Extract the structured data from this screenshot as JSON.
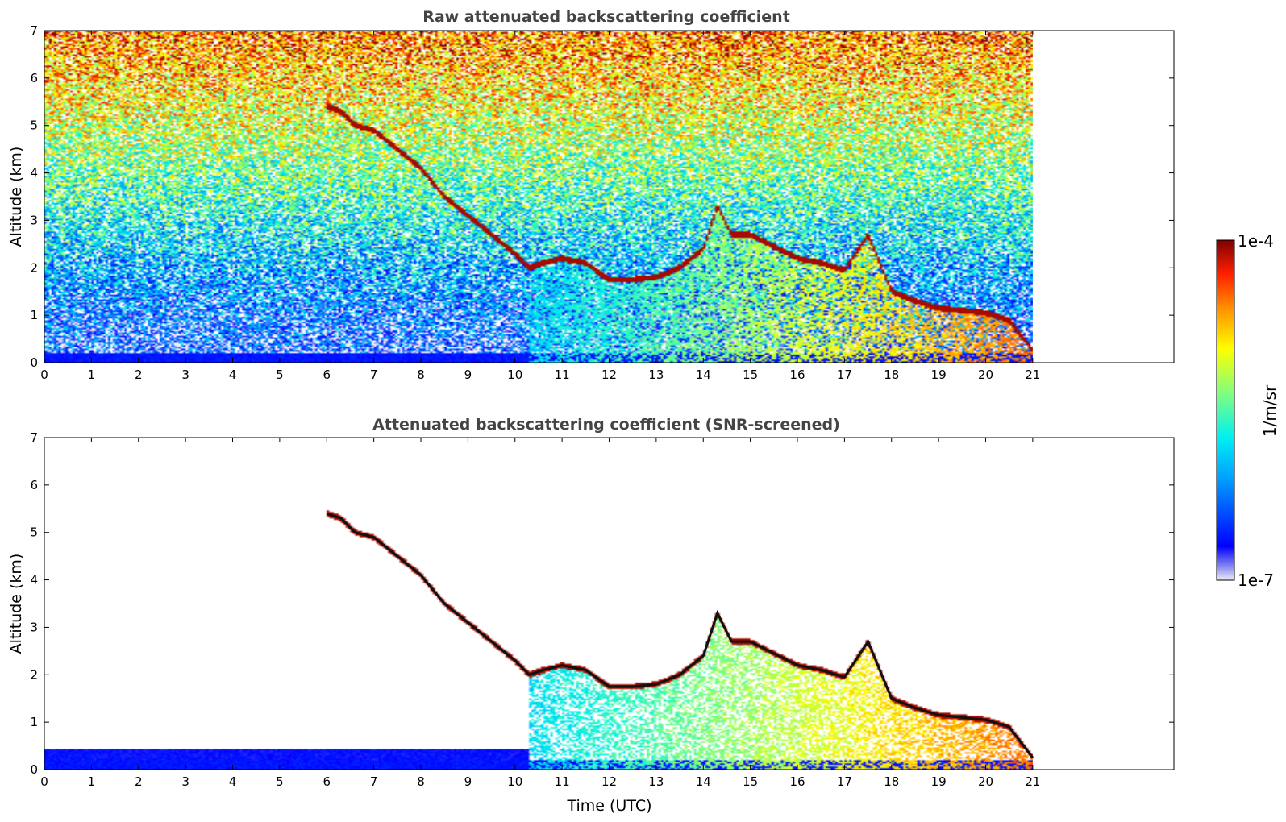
{
  "chart_data": [
    {
      "type": "heatmap",
      "title": "Raw attenuated backscattering coefficient",
      "xlabel": "",
      "ylabel": "Altitude (km)",
      "xlim": [
        0,
        24
      ],
      "ylim": [
        0,
        7
      ],
      "xticks": [
        0,
        1,
        2,
        3,
        4,
        5,
        6,
        7,
        8,
        9,
        10,
        11,
        12,
        13,
        14,
        15,
        16,
        17,
        18,
        19,
        20,
        21
      ],
      "xtick_labels": [
        "0",
        "1",
        "2",
        "3",
        "4",
        "5",
        "6",
        "7",
        "8",
        "9",
        "10",
        "11",
        "12",
        "13",
        "14",
        "15",
        "16",
        "17",
        "18",
        "19",
        "20",
        "21"
      ],
      "yticks": [
        0,
        1,
        2,
        3,
        4,
        5,
        6,
        7
      ],
      "ytick_labels": [
        "0",
        "1",
        "2",
        "3",
        "4",
        "5",
        "6",
        "7"
      ],
      "data_extent_x": [
        0,
        21
      ],
      "grid": false,
      "screened": false,
      "cloud_layer": {
        "time": [
          6.0,
          6.3,
          6.6,
          7.0,
          7.5,
          8.0,
          8.5,
          9.0,
          9.5,
          10.0,
          10.3,
          10.6,
          11.0,
          11.5,
          12.0,
          12.5,
          13.0,
          13.5,
          14.0,
          14.3,
          14.6,
          15.0,
          15.5,
          16.0,
          16.5,
          17.0,
          17.5,
          18.0,
          18.5,
          19.0,
          19.5,
          20.0,
          20.5,
          21.0
        ],
        "altitude_km": [
          5.4,
          5.3,
          5.0,
          4.9,
          4.5,
          4.1,
          3.5,
          3.1,
          2.7,
          2.3,
          2.0,
          2.1,
          2.2,
          2.1,
          1.75,
          1.75,
          1.8,
          2.0,
          2.4,
          3.3,
          2.7,
          2.7,
          2.45,
          2.2,
          2.1,
          1.95,
          2.7,
          1.5,
          1.3,
          1.15,
          1.1,
          1.05,
          0.9,
          0.25
        ]
      }
    },
    {
      "type": "heatmap",
      "title": "Attenuated backscattering coefficient (SNR-screened)",
      "xlabel": "Time (UTC)",
      "ylabel": "Altitude (km)",
      "xlim": [
        0,
        24
      ],
      "ylim": [
        0,
        7
      ],
      "xticks": [
        0,
        1,
        2,
        3,
        4,
        5,
        6,
        7,
        8,
        9,
        10,
        11,
        12,
        13,
        14,
        15,
        16,
        17,
        18,
        19,
        20,
        21
      ],
      "xtick_labels": [
        "0",
        "1",
        "2",
        "3",
        "4",
        "5",
        "6",
        "7",
        "8",
        "9",
        "10",
        "11",
        "12",
        "13",
        "14",
        "15",
        "16",
        "17",
        "18",
        "19",
        "20",
        "21"
      ],
      "yticks": [
        0,
        1,
        2,
        3,
        4,
        5,
        6,
        7
      ],
      "ytick_labels": [
        "0",
        "1",
        "2",
        "3",
        "4",
        "5",
        "6",
        "7"
      ],
      "data_extent_x": [
        0,
        21
      ],
      "grid": false,
      "screened": true,
      "cloud_layer": {
        "time": [
          6.0,
          6.3,
          6.6,
          7.0,
          7.5,
          8.0,
          8.5,
          9.0,
          9.5,
          10.0,
          10.3,
          10.6,
          11.0,
          11.5,
          12.0,
          12.5,
          13.0,
          13.5,
          14.0,
          14.3,
          14.6,
          15.0,
          15.5,
          16.0,
          16.5,
          17.0,
          17.5,
          18.0,
          18.5,
          19.0,
          19.5,
          20.0,
          20.5,
          21.0
        ],
        "altitude_km": [
          5.4,
          5.3,
          5.0,
          4.9,
          4.5,
          4.1,
          3.5,
          3.1,
          2.7,
          2.3,
          2.0,
          2.1,
          2.2,
          2.1,
          1.75,
          1.75,
          1.8,
          2.0,
          2.4,
          3.3,
          2.7,
          2.7,
          2.45,
          2.2,
          2.1,
          1.95,
          2.7,
          1.5,
          1.3,
          1.15,
          1.1,
          1.05,
          0.9,
          0.25
        ]
      }
    }
  ],
  "colorbar": {
    "label": "1/m/sr",
    "max_label": "1e-4",
    "min_label": "1e-7",
    "scale": "log",
    "colormap": "jet",
    "range": [
      1e-07,
      0.0001
    ]
  }
}
